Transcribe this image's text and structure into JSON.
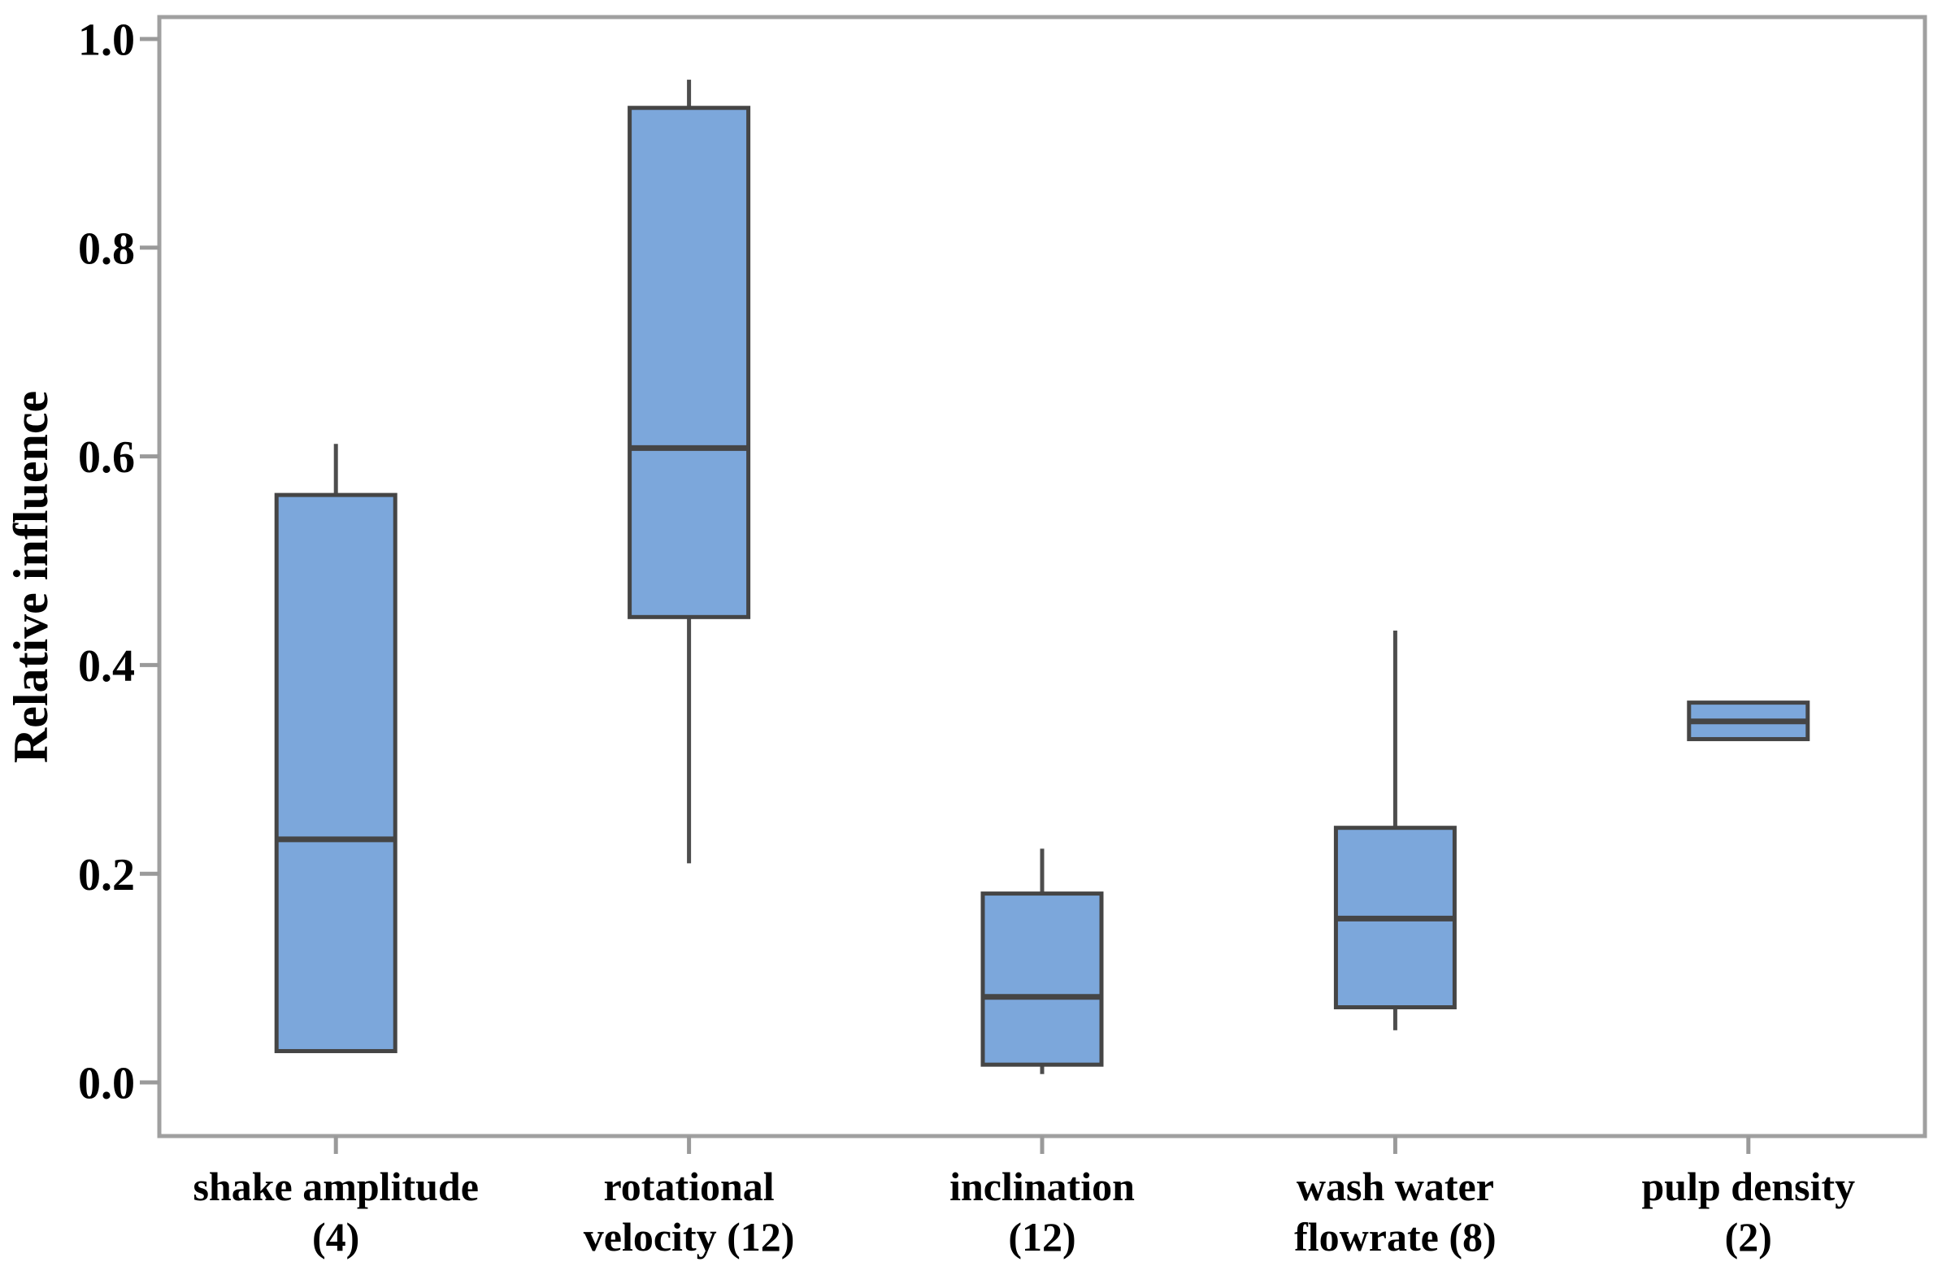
{
  "figure": {
    "title": "",
    "y_axis_label": "Relative influence"
  },
  "chart_data": {
    "type": "box",
    "title": "",
    "xlabel": "",
    "ylabel": "Relative influence",
    "ylim": [
      -0.05,
      1.02
    ],
    "grid": false,
    "legend": "none",
    "yticks": [
      {
        "value": 0.0,
        "label": "0.0"
      },
      {
        "value": 0.2,
        "label": "0.2"
      },
      {
        "value": 0.4,
        "label": "0.4"
      },
      {
        "value": 0.6,
        "label": "0.6"
      },
      {
        "value": 0.8,
        "label": "0.8"
      },
      {
        "value": 1.0,
        "label": "1.0"
      }
    ],
    "boxes": [
      {
        "category": "shake amplitude (4)",
        "label_lines": [
          "shake amplitude",
          "(4)"
        ],
        "whisker_low": 0.03,
        "q1": 0.03,
        "median": 0.233,
        "q3": 0.563,
        "whisker_high": 0.612
      },
      {
        "category": "rotational velocity (12)",
        "label_lines": [
          "rotational",
          "velocity (12)"
        ],
        "whisker_low": 0.21,
        "q1": 0.446,
        "median": 0.608,
        "q3": 0.934,
        "whisker_high": 0.961
      },
      {
        "category": "inclination (12)",
        "label_lines": [
          "inclination",
          "(12)"
        ],
        "whisker_low": 0.008,
        "q1": 0.017,
        "median": 0.082,
        "q3": 0.181,
        "whisker_high": 0.224
      },
      {
        "category": "wash water flowrate (8)",
        "label_lines": [
          "wash water",
          "flowrate (8)"
        ],
        "whisker_low": 0.05,
        "q1": 0.072,
        "median": 0.157,
        "q3": 0.244,
        "whisker_high": 0.433
      },
      {
        "category": "pulp density (2)",
        "label_lines": [
          "pulp density",
          "(2)"
        ],
        "whisker_low": 0.329,
        "q1": 0.329,
        "median": 0.346,
        "q3": 0.364,
        "whisker_high": 0.364
      }
    ]
  },
  "colors": {
    "box_fill": "#7ca7db",
    "box_stroke": "#454545",
    "median_stroke": "#454545",
    "whisker_stroke": "#4d4d4d",
    "axis_frame": "#a0a0a0",
    "tick": "#9a9a9a",
    "text": "#000000",
    "background": "#ffffff"
  }
}
